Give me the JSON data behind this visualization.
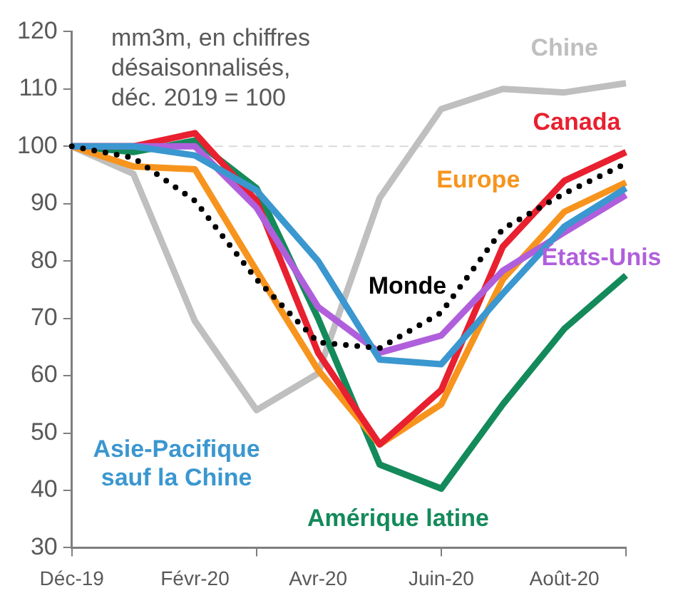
{
  "chart_data": {
    "type": "line",
    "categories": [
      "Déc-19",
      null,
      "Févr-20",
      null,
      "Avr-20",
      null,
      "Juin-20",
      null,
      "Août-20",
      null
    ],
    "series": [
      {
        "name": "Chine",
        "color": "#bfbfbf",
        "values": [
          100,
          95.2,
          69.5,
          54,
          60.4,
          91,
          106.5,
          110,
          109.4,
          111
        ]
      },
      {
        "name": "Amérique latine",
        "color": "#148a5b",
        "values": [
          100,
          99,
          101,
          92.7,
          70,
          44.5,
          40.3,
          55,
          68.2,
          77.5
        ]
      },
      {
        "name": "Europe",
        "color": "#f7941d",
        "values": [
          100,
          96.5,
          96,
          78.3,
          61,
          48,
          55,
          76.8,
          88.6,
          93.7
        ]
      },
      {
        "name": "Canada",
        "color": "#e8202f",
        "values": [
          100,
          100,
          102.3,
          90.5,
          64,
          48,
          57.5,
          82.5,
          94,
          99
        ]
      },
      {
        "name": "États-Unis",
        "color": "#b05fdc",
        "values": [
          100,
          100,
          100,
          89.3,
          72,
          64,
          67,
          78.3,
          85,
          91.5
        ]
      },
      {
        "name": "Asie-Pacifique sauf la Chine",
        "color": "#3b97cf",
        "values": [
          100,
          100,
          98.4,
          92.3,
          80,
          62.8,
          62,
          74.3,
          86,
          92.7
        ]
      },
      {
        "name": "Monde",
        "color": "#000000",
        "line_style": "dotted",
        "values": [
          100,
          98,
          90.5,
          76.8,
          65.8,
          64.8,
          71,
          85.6,
          91.8,
          97
        ]
      }
    ],
    "ylim": [
      30,
      120
    ],
    "yticks": [
      30,
      40,
      50,
      60,
      70,
      80,
      90,
      100,
      110,
      120
    ],
    "ref_lines": [
      {
        "axis": "y",
        "value": 100,
        "color": "#d9d9d9",
        "line_style": "dashed"
      }
    ],
    "annotations": [
      "mm3m, en chiffres désaisonnalisés, déc. 2019 = 100"
    ],
    "legend": false,
    "grid": false,
    "marker": "none",
    "line_style": "solid"
  }
}
